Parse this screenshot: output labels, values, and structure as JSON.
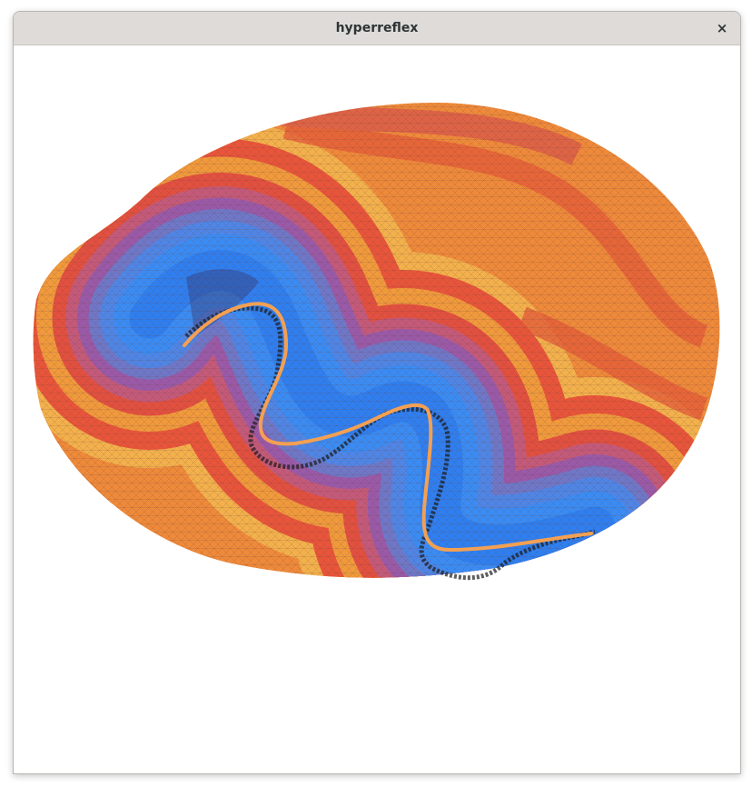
{
  "window": {
    "title": "hyperreflex",
    "close_glyph": "×",
    "close_icon": "close-icon"
  },
  "scene": {
    "description_colors": {
      "outer_orange": "#f0a63c",
      "mid_red": "#e8553a",
      "purple": "#9a5aa8",
      "inner_blue": "#3f86f2",
      "path_orange": "#f4a052",
      "path_black": "#1a1a1a"
    }
  }
}
